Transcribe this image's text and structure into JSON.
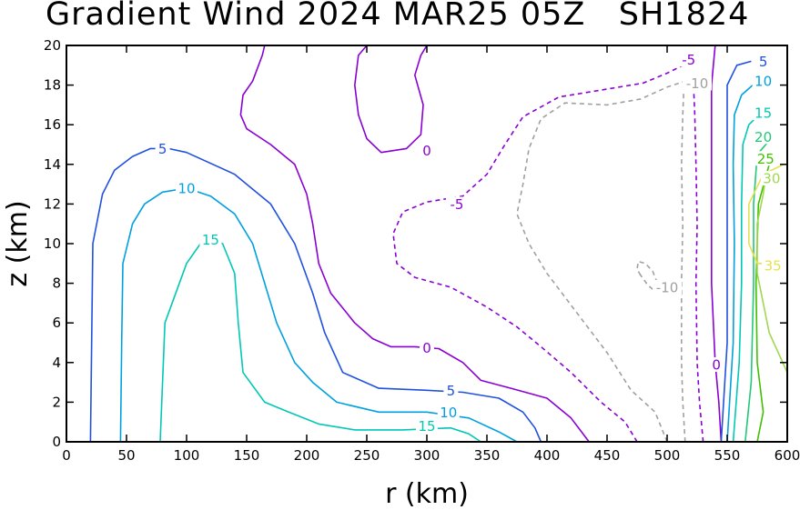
{
  "chart_data": {
    "type": "contour",
    "title": "Gradient Wind 2024 MAR25 05Z   SH1824",
    "xlabel": "r (km)",
    "ylabel": "z (km)",
    "xlim": [
      0,
      600
    ],
    "ylim": [
      0,
      20
    ],
    "xticks": [
      0,
      50,
      100,
      150,
      200,
      250,
      300,
      350,
      400,
      450,
      500,
      550,
      600
    ],
    "yticks": [
      0,
      2,
      4,
      6,
      8,
      10,
      12,
      14,
      16,
      18,
      20
    ],
    "grid": false,
    "contours": [
      {
        "level": 0,
        "color": "#8a00d4",
        "dashed": false,
        "lines": [
          [
            [
              435,
              0
            ],
            [
              420,
              1.2
            ],
            [
              400,
              2.2
            ],
            [
              370,
              2.7
            ],
            [
              345,
              3.1
            ],
            [
              330,
              4.0
            ],
            [
              310,
              4.7
            ],
            [
              290,
              4.8
            ],
            [
              270,
              4.8
            ],
            [
              255,
              5.2
            ],
            [
              240,
              6.0
            ],
            [
              220,
              7.5
            ],
            [
              210,
              9.0
            ],
            [
              205,
              11.0
            ],
            [
              200,
              12.5
            ],
            [
              190,
              14.0
            ],
            [
              170,
              15.0
            ],
            [
              150,
              15.8
            ],
            [
              145,
              16.5
            ],
            [
              147,
              17.5
            ],
            [
              155,
              18.2
            ],
            [
              163,
              19.5
            ],
            [
              165,
              20
            ]
          ],
          [
            [
              250,
              20
            ],
            [
              243,
              19.5
            ],
            [
              240,
              18.0
            ],
            [
              243,
              16.5
            ],
            [
              250,
              15.3
            ],
            [
              262,
              14.6
            ],
            [
              283,
              14.8
            ],
            [
              295,
              15.5
            ],
            [
              297,
              17.0
            ],
            [
              290,
              18.5
            ],
            [
              295,
              19.5
            ],
            [
              300,
              20
            ]
          ],
          [
            [
              545,
              0
            ],
            [
              543,
              2.0
            ],
            [
              540,
              4.0
            ],
            [
              537,
              8.0
            ],
            [
              537,
              12.0
            ],
            [
              537,
              16.0
            ],
            [
              537,
              18.0
            ],
            [
              540,
              20
            ]
          ]
        ],
        "labels": [
          {
            "text": "0",
            "x": 300,
            "y": 14.7
          },
          {
            "text": "0",
            "x": 300,
            "y": 4.75
          },
          {
            "text": "0",
            "x": 541,
            "y": 3.9
          }
        ]
      },
      {
        "level": -5,
        "color": "#8a00d4",
        "dashed": true,
        "lines": [
          [
            [
              475,
              0
            ],
            [
              465,
              1.0
            ],
            [
              445,
              2.0
            ],
            [
              420,
              3.5
            ],
            [
              395,
              4.8
            ],
            [
              375,
              5.8
            ],
            [
              350,
              6.8
            ],
            [
              320,
              7.8
            ],
            [
              290,
              8.3
            ],
            [
              275,
              9.0
            ],
            [
              272,
              10.5
            ],
            [
              280,
              11.6
            ],
            [
              300,
              12.1
            ],
            [
              330,
              12.4
            ],
            [
              350,
              13.5
            ],
            [
              365,
              15.0
            ],
            [
              380,
              16.4
            ],
            [
              410,
              17.4
            ],
            [
              450,
              17.8
            ],
            [
              480,
              18.1
            ],
            [
              500,
              18.6
            ],
            [
              520,
              19.2
            ]
          ],
          [
            [
              530,
              0
            ],
            [
              527,
              2.0
            ],
            [
              525,
              4.0
            ],
            [
              524,
              8.0
            ],
            [
              525,
              11.0
            ],
            [
              524,
              14.0
            ],
            [
              523,
              16.5
            ],
            [
              522,
              18.0
            ]
          ]
        ],
        "labels": [
          {
            "text": "-5",
            "x": 325,
            "y": 12.0
          },
          {
            "text": "-5",
            "x": 518,
            "y": 19.3
          }
        ]
      },
      {
        "level": -10,
        "color": "#a0a0a0",
        "dashed": true,
        "lines": [
          [
            [
              500,
              0
            ],
            [
              490,
              1.5
            ],
            [
              470,
              2.6
            ],
            [
              450,
              4.5
            ],
            [
              425,
              6.5
            ],
            [
              400,
              8.5
            ],
            [
              385,
              10.0
            ],
            [
              375,
              11.5
            ],
            [
              380,
              13.0
            ],
            [
              385,
              14.8
            ],
            [
              395,
              16.3
            ],
            [
              415,
              17.1
            ],
            [
              450,
              17.0
            ],
            [
              478,
              17.3
            ],
            [
              500,
              17.9
            ],
            [
              520,
              18.3
            ]
          ],
          [
            [
              515,
              0
            ],
            [
              513,
              2.0
            ],
            [
              512,
              4.0
            ],
            [
              512,
              8.0
            ],
            [
              513,
              11.0
            ],
            [
              512,
              14.0
            ],
            [
              513,
              16.5
            ],
            [
              514,
              18.0
            ]
          ],
          [
            [
              478,
              8.4
            ],
            [
              475,
              8.7
            ],
            [
              476,
              9.1
            ],
            [
              482,
              9.0
            ],
            [
              488,
              8.6
            ],
            [
              492,
              8.0
            ],
            [
              490,
              7.6
            ],
            [
              484,
              7.9
            ],
            [
              478,
              8.4
            ]
          ]
        ],
        "labels": [
          {
            "text": "-10",
            "x": 525,
            "y": 18.1
          },
          {
            "text": "-10",
            "x": 500,
            "y": 7.8
          }
        ]
      },
      {
        "level": 5,
        "color": "#2050e0",
        "dashed": false,
        "lines": [
          [
            [
              20,
              0
            ],
            [
              21,
              5.0
            ],
            [
              22,
              10.0
            ],
            [
              30,
              12.5
            ],
            [
              40,
              13.7
            ],
            [
              55,
              14.4
            ],
            [
              70,
              14.8
            ],
            [
              85,
              14.8
            ],
            [
              100,
              14.6
            ],
            [
              140,
              13.5
            ],
            [
              170,
              12.0
            ],
            [
              190,
              10.0
            ],
            [
              205,
              7.5
            ],
            [
              215,
              5.5
            ],
            [
              230,
              3.5
            ],
            [
              260,
              2.7
            ],
            [
              300,
              2.6
            ],
            [
              330,
              2.5
            ],
            [
              360,
              2.2
            ],
            [
              380,
              1.5
            ],
            [
              390,
              0.7
            ],
            [
              395,
              0
            ]
          ],
          [
            [
              545,
              0
            ],
            [
              550,
              5.0
            ],
            [
              550,
              10.0
            ],
            [
              550,
              15.0
            ],
            [
              550,
              18.0
            ],
            [
              558,
              19.0
            ],
            [
              570,
              19.2
            ]
          ]
        ],
        "labels": [
          {
            "text": "5",
            "x": 80,
            "y": 14.8
          },
          {
            "text": "5",
            "x": 320,
            "y": 2.6
          },
          {
            "text": "5",
            "x": 580,
            "y": 19.2
          }
        ]
      },
      {
        "level": 10,
        "color": "#00a0e0",
        "dashed": false,
        "lines": [
          [
            [
              45,
              0
            ],
            [
              46,
              5.0
            ],
            [
              47,
              9.0
            ],
            [
              55,
              11.0
            ],
            [
              65,
              12.0
            ],
            [
              80,
              12.6
            ],
            [
              100,
              12.8
            ],
            [
              120,
              12.4
            ],
            [
              140,
              11.5
            ],
            [
              155,
              10.0
            ],
            [
              165,
              8.0
            ],
            [
              175,
              6.0
            ],
            [
              190,
              4.0
            ],
            [
              205,
              3.0
            ],
            [
              225,
              2.0
            ],
            [
              260,
              1.5
            ],
            [
              300,
              1.5
            ],
            [
              335,
              1.2
            ],
            [
              360,
              0.5
            ],
            [
              375,
              0
            ]
          ],
          [
            [
              550,
              0
            ],
            [
              555,
              5.0
            ],
            [
              556,
              10.0
            ],
            [
              555,
              14.0
            ],
            [
              556,
              16.5
            ],
            [
              562,
              17.5
            ],
            [
              575,
              18.2
            ]
          ]
        ],
        "labels": [
          {
            "text": "10",
            "x": 100,
            "y": 12.8
          },
          {
            "text": "10",
            "x": 318,
            "y": 1.5
          },
          {
            "text": "10",
            "x": 580,
            "y": 18.2
          }
        ]
      },
      {
        "level": 15,
        "color": "#00c8b4",
        "dashed": false,
        "lines": [
          [
            [
              78,
              0
            ],
            [
              80,
              3.0
            ],
            [
              82,
              6.0
            ],
            [
              100,
              9.0
            ],
            [
              115,
              10.3
            ],
            [
              130,
              10.0
            ],
            [
              140,
              8.5
            ],
            [
              143,
              6.0
            ],
            [
              147,
              3.5
            ],
            [
              165,
              2.0
            ],
            [
              185,
              1.5
            ],
            [
              210,
              0.9
            ],
            [
              240,
              0.6
            ],
            [
              280,
              0.6
            ],
            [
              320,
              0.7
            ],
            [
              335,
              0.4
            ],
            [
              345,
              0
            ]
          ],
          [
            [
              555,
              0
            ],
            [
              560,
              4.0
            ],
            [
              562,
              8.0
            ],
            [
              562,
              12.0
            ],
            [
              563,
              15.0
            ],
            [
              568,
              16.0
            ],
            [
              578,
              16.6
            ]
          ]
        ],
        "labels": [
          {
            "text": "15",
            "x": 120,
            "y": 10.2
          },
          {
            "text": "15",
            "x": 300,
            "y": 0.8
          },
          {
            "text": "15",
            "x": 580,
            "y": 16.6
          }
        ]
      },
      {
        "level": 20,
        "color": "#20c878",
        "dashed": false,
        "lines": [
          [
            [
              565,
              0
            ],
            [
              570,
              3.0
            ],
            [
              572,
              8.0
            ],
            [
              572,
              12.0
            ],
            [
              575,
              14.5
            ],
            [
              585,
              15.2
            ]
          ]
        ],
        "labels": [
          {
            "text": "20",
            "x": 580,
            "y": 15.4
          }
        ]
      },
      {
        "level": 25,
        "color": "#40c000",
        "dashed": false,
        "lines": [
          [
            [
              575,
              0
            ],
            [
              580,
              1.5
            ],
            [
              575,
              4.0
            ],
            [
              574,
              8.0
            ],
            [
              576,
              12.0
            ],
            [
              585,
              14.0
            ]
          ]
        ],
        "labels": [
          {
            "text": "25",
            "x": 582,
            "y": 14.3
          }
        ]
      },
      {
        "level": 30,
        "color": "#a0d850",
        "dashed": false,
        "lines": [
          [
            [
              600,
              3.5
            ],
            [
              585,
              5.5
            ],
            [
              575,
              8.5
            ],
            [
              575,
              11.0
            ],
            [
              580,
              12.5
            ],
            [
              582,
              13.3
            ]
          ]
        ],
        "labels": [
          {
            "text": "30",
            "x": 587,
            "y": 13.3
          }
        ]
      },
      {
        "level": 35,
        "color": "#e6e050",
        "dashed": false,
        "lines": [
          [
            [
              597,
              14.0
            ],
            [
              580,
              13.5
            ],
            [
              568,
              12.0
            ],
            [
              568,
              10.0
            ],
            [
              575,
              9.0
            ],
            [
              583,
              9.0
            ]
          ]
        ],
        "labels": [
          {
            "text": "35",
            "x": 588,
            "y": 8.9
          }
        ]
      }
    ]
  }
}
